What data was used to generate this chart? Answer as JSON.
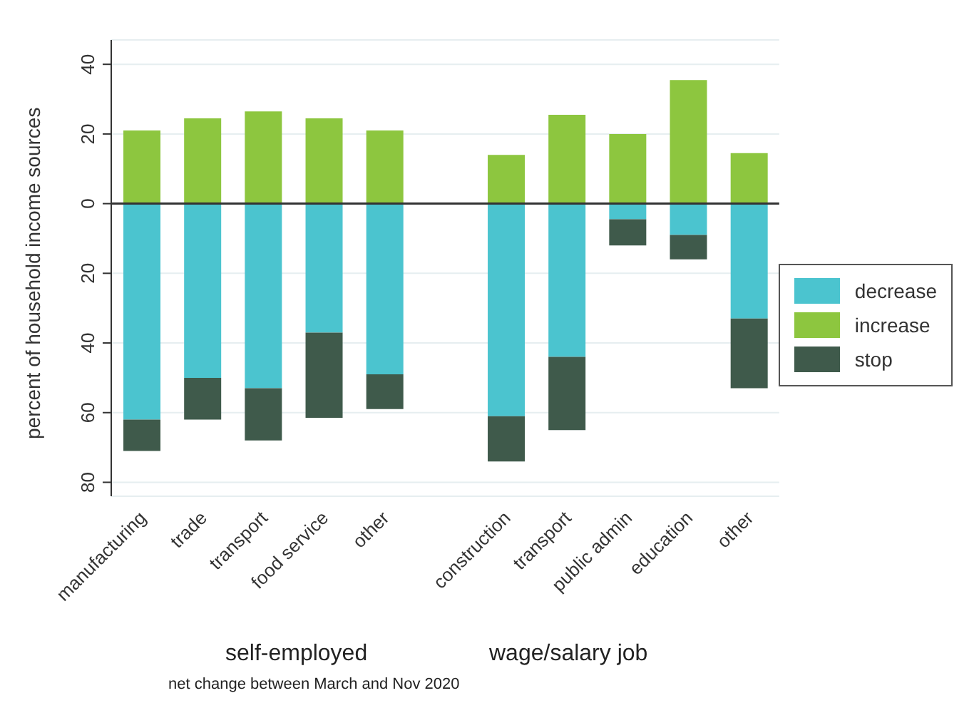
{
  "chart_data": {
    "type": "bar",
    "stacked": true,
    "categories": [
      "manufacturing",
      "trade",
      "transport",
      "food service",
      "other",
      null,
      "construction",
      "transport",
      "public admin",
      "education",
      "other"
    ],
    "series": [
      {
        "name": "increase",
        "color": "#8dc63f",
        "values": [
          21,
          24.5,
          26.5,
          24.5,
          21,
          null,
          14,
          25.5,
          20,
          35.5,
          14.5
        ]
      },
      {
        "name": "decrease",
        "color": "#4bc4cf",
        "values": [
          -62,
          -50,
          -53,
          -37,
          -49,
          null,
          -61,
          -44,
          -4.5,
          -9,
          -33
        ]
      },
      {
        "name": "stop",
        "color": "#3f5a4b",
        "values": [
          -9,
          -12,
          -15,
          -24.5,
          -10,
          null,
          -13,
          -21,
          -7.5,
          -7,
          -20
        ]
      }
    ],
    "ylabel": "percent of household income sources",
    "ylim": [
      -84,
      47
    ],
    "yticks": [
      {
        "value": -80,
        "label": "80"
      },
      {
        "value": -60,
        "label": "60"
      },
      {
        "value": -40,
        "label": "40"
      },
      {
        "value": -20,
        "label": "20"
      },
      0,
      20,
      40
    ],
    "ref_lines": [
      {
        "axis": "y",
        "value": 0,
        "color": "#333333"
      }
    ],
    "grid": "y",
    "legend": "right",
    "annotations": [
      "self-employed",
      "wage/salary job",
      "net change between March and Nov 2020"
    ]
  }
}
